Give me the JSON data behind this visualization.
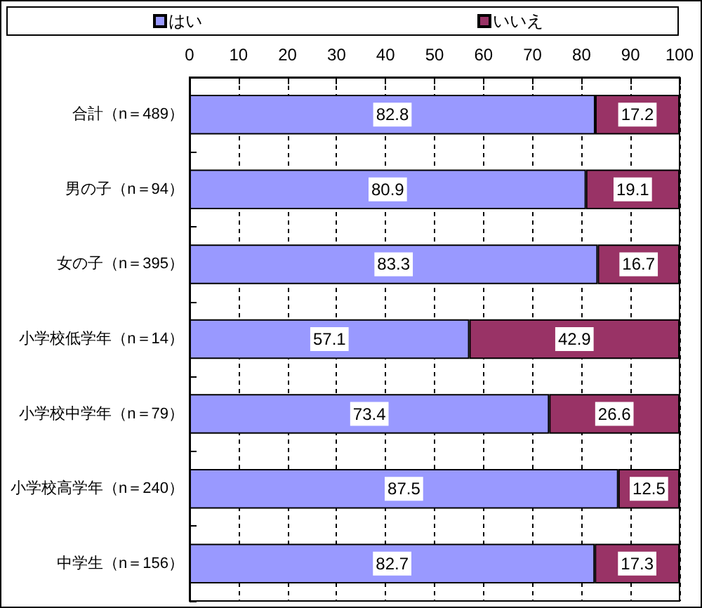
{
  "chart_data": {
    "type": "bar",
    "orientation": "horizontal",
    "stacked": true,
    "categories": [
      "合計（n＝489）",
      "男の子（n＝94）",
      "女の子（n＝395）",
      "小学校低学年（n＝14）",
      "小学校中学年（n＝79）",
      "小学校高学年（n＝240）",
      "中学生（n＝156）"
    ],
    "series": [
      {
        "name": "はい",
        "color": "#9999ff",
        "values": [
          82.8,
          80.9,
          83.3,
          57.1,
          73.4,
          87.5,
          82.7
        ]
      },
      {
        "name": "いいえ",
        "color": "#993366",
        "values": [
          17.2,
          19.1,
          16.7,
          42.9,
          26.6,
          12.5,
          17.3
        ]
      }
    ],
    "xlim": [
      0,
      100
    ],
    "xticks": [
      0,
      10,
      20,
      30,
      40,
      50,
      60,
      70,
      80,
      90,
      100
    ],
    "data_labels": true,
    "grid": "x",
    "legend": "top"
  }
}
